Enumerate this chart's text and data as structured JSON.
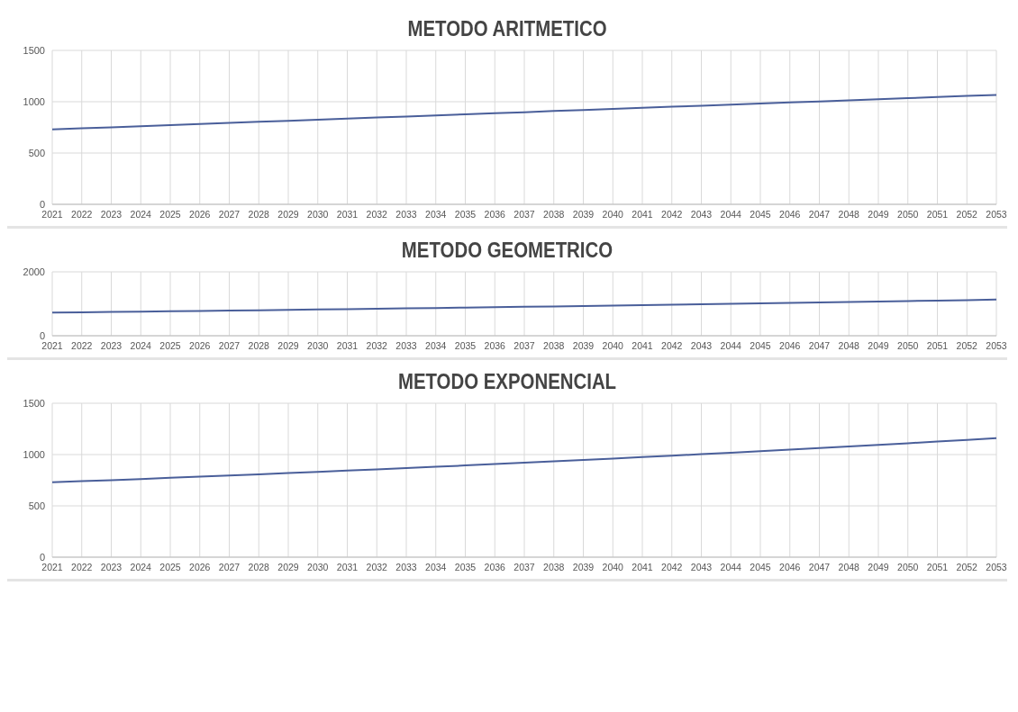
{
  "chart_data": [
    {
      "type": "line",
      "title": "METODO ARITMETICO",
      "categories": [
        "2021",
        "2022",
        "2023",
        "2024",
        "2025",
        "2026",
        "2027",
        "2028",
        "2029",
        "2030",
        "2031",
        "2032",
        "2033",
        "2034",
        "2035",
        "2036",
        "2037",
        "2038",
        "2039",
        "2040",
        "2041",
        "2042",
        "2043",
        "2044",
        "2045",
        "2046",
        "2047",
        "2048",
        "2049",
        "2050",
        "2051",
        "2052",
        "2053"
      ],
      "series": [
        {
          "color": "#4a5f9a",
          "values": [
            730,
            741,
            751,
            762,
            772,
            783,
            793,
            804,
            814,
            825,
            835,
            846,
            856,
            867,
            877,
            888,
            898,
            909,
            919,
            930,
            940,
            951,
            961,
            972,
            982,
            993,
            1003,
            1014,
            1024,
            1035,
            1045,
            1056,
            1066
          ]
        }
      ],
      "ylim": [
        0,
        1500
      ],
      "yticks": [
        0,
        500,
        1000,
        1500
      ],
      "grid": true,
      "legend": false,
      "marker": "none"
    },
    {
      "type": "line",
      "title": "METODO GEOMETRICO",
      "categories": [
        "2021",
        "2022",
        "2023",
        "2024",
        "2025",
        "2026",
        "2027",
        "2028",
        "2029",
        "2030",
        "2031",
        "2032",
        "2033",
        "2034",
        "2035",
        "2036",
        "2037",
        "2038",
        "2039",
        "2040",
        "2041",
        "2042",
        "2043",
        "2044",
        "2045",
        "2046",
        "2047",
        "2048",
        "2049",
        "2050",
        "2051",
        "2052",
        "2053"
      ],
      "series": [
        {
          "color": "#4a5f9a",
          "values": [
            725,
            735,
            746,
            756,
            767,
            777,
            788,
            799,
            810,
            822,
            833,
            845,
            857,
            869,
            881,
            893,
            906,
            918,
            931,
            944,
            957,
            971,
            984,
            998,
            1012,
            1026,
            1041,
            1055,
            1070,
            1085,
            1100,
            1116,
            1131
          ]
        }
      ],
      "ylim": [
        0,
        2000
      ],
      "yticks": [
        0,
        2000
      ],
      "grid": true,
      "legend": false,
      "marker": "none"
    },
    {
      "type": "line",
      "title": "METODO EXPONENCIAL",
      "categories": [
        "2021",
        "2022",
        "2023",
        "2024",
        "2025",
        "2026",
        "2027",
        "2028",
        "2029",
        "2030",
        "2031",
        "2032",
        "2033",
        "2034",
        "2035",
        "2036",
        "2037",
        "2038",
        "2039",
        "2040",
        "2041",
        "2042",
        "2043",
        "2044",
        "2045",
        "2046",
        "2047",
        "2048",
        "2049",
        "2050",
        "2051",
        "2052",
        "2053"
      ],
      "series": [
        {
          "color": "#4a5f9a",
          "values": [
            730,
            741,
            751,
            762,
            774,
            785,
            796,
            808,
            820,
            832,
            844,
            856,
            868,
            881,
            894,
            907,
            920,
            934,
            947,
            961,
            975,
            989,
            1004,
            1018,
            1033,
            1048,
            1063,
            1079,
            1094,
            1110,
            1127,
            1143,
            1160
          ]
        }
      ],
      "ylim": [
        0,
        1500
      ],
      "yticks": [
        0,
        500,
        1000,
        1500
      ],
      "grid": true,
      "legend": false,
      "marker": "none"
    }
  ]
}
